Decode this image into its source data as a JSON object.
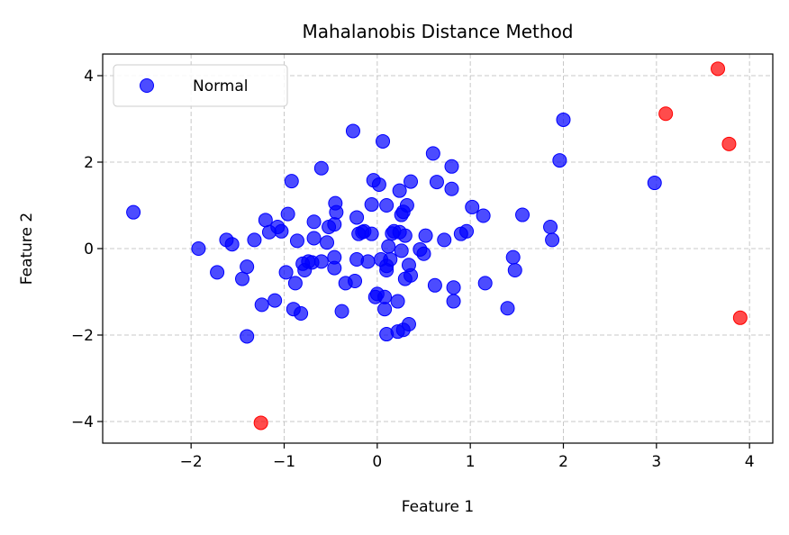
{
  "chart_data": {
    "type": "scatter",
    "title": "Mahalanobis Distance Method",
    "xlabel": "Feature 1",
    "ylabel": "Feature 2",
    "xlim": [
      -2.95,
      4.25
    ],
    "ylim": [
      -4.5,
      4.5
    ],
    "xticks": [
      -2,
      -1,
      0,
      1,
      2,
      3,
      4
    ],
    "yticks": [
      -4,
      -2,
      0,
      2,
      4
    ],
    "xtick_labels": [
      "−2",
      "−1",
      "0",
      "1",
      "2",
      "3",
      "4"
    ],
    "ytick_labels": [
      "−4",
      "−2",
      "0",
      "2",
      "4"
    ],
    "grid": true,
    "legend": {
      "position": "top-left",
      "entries": [
        {
          "label": "Normal",
          "color": "#0000ff"
        }
      ]
    },
    "series": [
      {
        "name": "Normal",
        "color": "#0000ff",
        "points": [
          [
            -2.62,
            0.84
          ],
          [
            -1.92,
            0.0
          ],
          [
            -1.72,
            -0.55
          ],
          [
            -1.62,
            0.2
          ],
          [
            -1.56,
            0.1
          ],
          [
            -1.45,
            -0.7
          ],
          [
            -1.4,
            -0.42
          ],
          [
            -1.4,
            -2.03
          ],
          [
            -1.32,
            0.2
          ],
          [
            -1.24,
            -1.3
          ],
          [
            -1.2,
            0.66
          ],
          [
            -1.16,
            0.38
          ],
          [
            -1.1,
            -1.2
          ],
          [
            -1.07,
            0.5
          ],
          [
            -1.03,
            0.4
          ],
          [
            -0.98,
            -0.55
          ],
          [
            -0.96,
            0.8
          ],
          [
            -0.92,
            1.56
          ],
          [
            -0.9,
            -1.4
          ],
          [
            -0.88,
            -0.8
          ],
          [
            -0.86,
            0.18
          ],
          [
            -0.82,
            -1.5
          ],
          [
            -0.8,
            -0.35
          ],
          [
            -0.78,
            -0.5
          ],
          [
            -0.74,
            -0.3
          ],
          [
            -0.7,
            -0.32
          ],
          [
            -0.68,
            0.62
          ],
          [
            -0.68,
            0.24
          ],
          [
            -0.6,
            -0.3
          ],
          [
            -0.6,
            1.86
          ],
          [
            -0.54,
            0.14
          ],
          [
            -0.52,
            0.5
          ],
          [
            -0.46,
            0.56
          ],
          [
            -0.46,
            -0.2
          ],
          [
            -0.46,
            -0.45
          ],
          [
            -0.45,
            1.05
          ],
          [
            -0.44,
            0.84
          ],
          [
            -0.38,
            -1.45
          ],
          [
            -0.34,
            -0.8
          ],
          [
            -0.26,
            2.72
          ],
          [
            -0.24,
            -0.75
          ],
          [
            -0.22,
            -0.25
          ],
          [
            -0.22,
            0.72
          ],
          [
            -0.2,
            0.34
          ],
          [
            -0.16,
            0.38
          ],
          [
            -0.14,
            0.4
          ],
          [
            -0.1,
            -0.3
          ],
          [
            -0.06,
            0.34
          ],
          [
            -0.06,
            1.02
          ],
          [
            -0.04,
            1.58
          ],
          [
            -0.02,
            -1.12
          ],
          [
            0.0,
            -1.05
          ],
          [
            0.02,
            1.48
          ],
          [
            0.04,
            -0.25
          ],
          [
            0.06,
            2.48
          ],
          [
            0.08,
            -1.12
          ],
          [
            0.08,
            -1.4
          ],
          [
            0.1,
            -0.4
          ],
          [
            0.1,
            -0.5
          ],
          [
            0.1,
            1.0
          ],
          [
            0.1,
            -1.98
          ],
          [
            0.12,
            0.05
          ],
          [
            0.14,
            -0.25
          ],
          [
            0.16,
            0.35
          ],
          [
            0.18,
            0.4
          ],
          [
            0.22,
            -1.22
          ],
          [
            0.22,
            -1.92
          ],
          [
            0.24,
            1.34
          ],
          [
            0.24,
            0.38
          ],
          [
            0.26,
            -0.05
          ],
          [
            0.26,
            0.78
          ],
          [
            0.28,
            -1.88
          ],
          [
            0.28,
            0.85
          ],
          [
            0.3,
            0.3
          ],
          [
            0.3,
            -0.7
          ],
          [
            0.32,
            1.0
          ],
          [
            0.34,
            -0.38
          ],
          [
            0.34,
            -1.75
          ],
          [
            0.36,
            1.55
          ],
          [
            0.36,
            -0.62
          ],
          [
            0.46,
            -0.02
          ],
          [
            0.5,
            -0.12
          ],
          [
            0.52,
            0.3
          ],
          [
            0.6,
            2.2
          ],
          [
            0.62,
            -0.85
          ],
          [
            0.64,
            1.54
          ],
          [
            0.72,
            0.2
          ],
          [
            0.8,
            1.9
          ],
          [
            0.8,
            1.38
          ],
          [
            0.82,
            -1.22
          ],
          [
            0.82,
            -0.9
          ],
          [
            0.9,
            0.34
          ],
          [
            0.96,
            0.4
          ],
          [
            1.02,
            0.96
          ],
          [
            1.14,
            0.76
          ],
          [
            1.16,
            -0.8
          ],
          [
            1.4,
            -1.38
          ],
          [
            1.46,
            -0.2
          ],
          [
            1.48,
            -0.5
          ],
          [
            1.56,
            0.78
          ],
          [
            1.86,
            0.5
          ],
          [
            1.88,
            0.2
          ],
          [
            1.96,
            2.04
          ],
          [
            2.0,
            2.98
          ],
          [
            2.98,
            1.52
          ]
        ]
      },
      {
        "name": "",
        "color": "#ff0000",
        "points": [
          [
            -1.25,
            -4.03
          ],
          [
            3.1,
            3.12
          ],
          [
            3.66,
            4.16
          ],
          [
            3.78,
            2.42
          ],
          [
            3.9,
            -1.6
          ]
        ]
      }
    ]
  }
}
